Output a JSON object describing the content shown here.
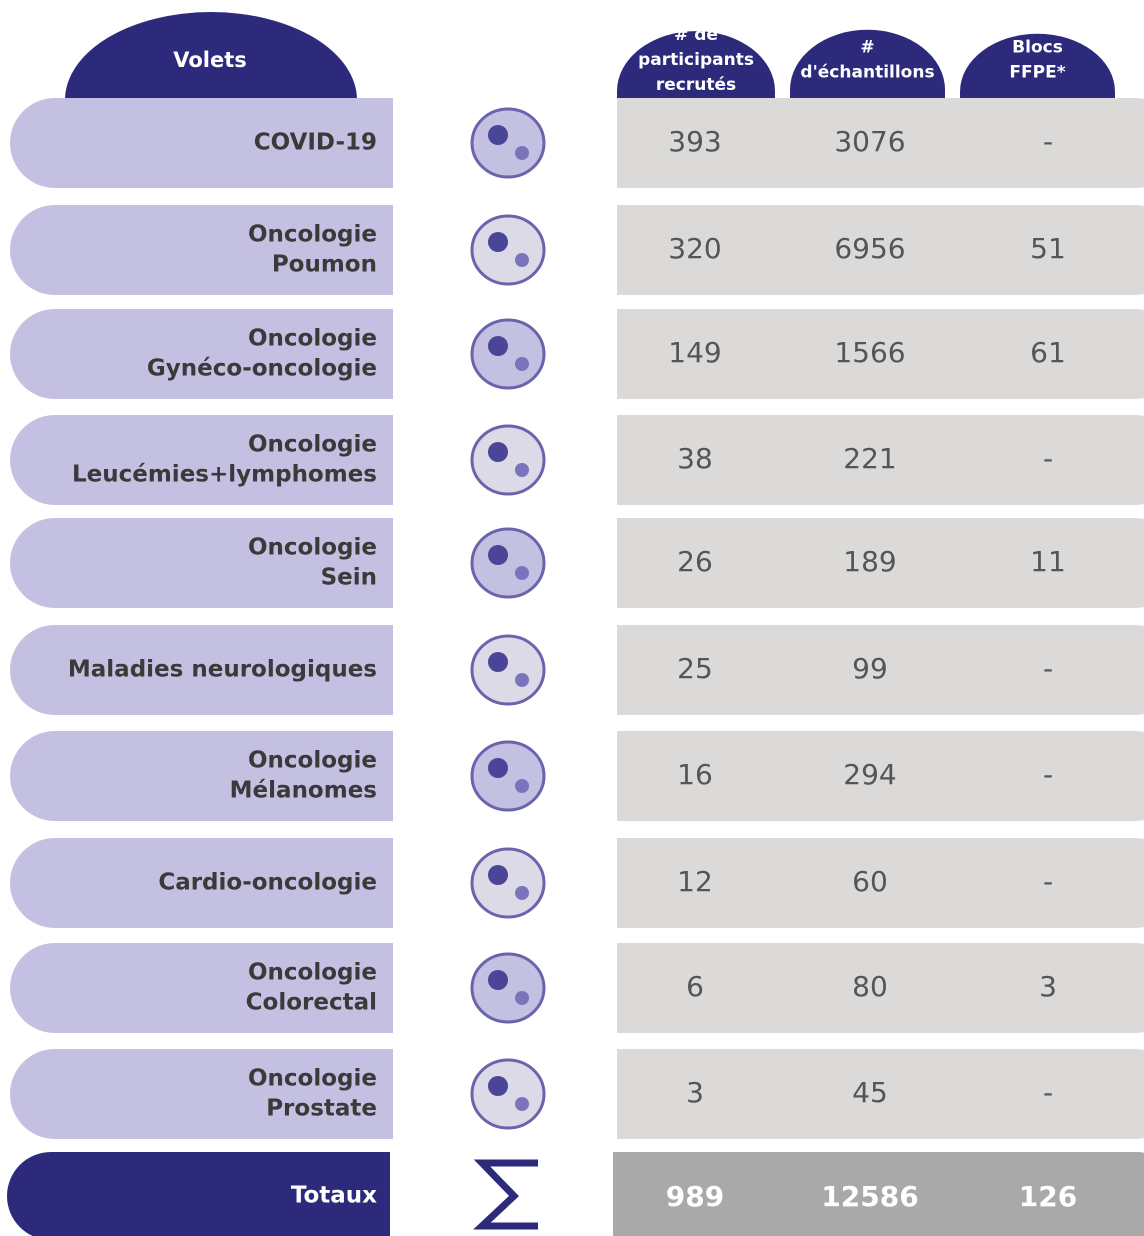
{
  "header": {
    "title": "Volets",
    "columns": [
      [
        "# de",
        "participants",
        "recrutés"
      ],
      [
        "#",
        "d'échantillons"
      ],
      [
        "Blocs",
        "FFPE*"
      ]
    ]
  },
  "rows": [
    {
      "label": [
        "COVID-19"
      ],
      "values": [
        393,
        3076,
        "-"
      ]
    },
    {
      "label": [
        "Oncologie",
        "Poumon"
      ],
      "values": [
        320,
        6956,
        51
      ]
    },
    {
      "label": [
        "Oncologie",
        "Gynéco-oncologie"
      ],
      "values": [
        149,
        1566,
        61
      ]
    },
    {
      "label": [
        "Oncologie",
        "Leucémies+lymphomes"
      ],
      "values": [
        38,
        221,
        "-"
      ]
    },
    {
      "label": [
        "Oncologie",
        "Sein"
      ],
      "values": [
        26,
        189,
        11
      ]
    },
    {
      "label": [
        "Maladies neurologiques"
      ],
      "values": [
        25,
        99,
        "-"
      ]
    },
    {
      "label": [
        "Oncologie",
        "Mélanomes"
      ],
      "values": [
        16,
        294,
        "-"
      ]
    },
    {
      "label": [
        "Cardio-oncologie"
      ],
      "values": [
        12,
        60,
        "-"
      ]
    },
    {
      "label": [
        "Oncologie",
        "Colorectal"
      ],
      "values": [
        6,
        80,
        3
      ]
    },
    {
      "label": [
        "Oncologie",
        "Prostate"
      ],
      "values": [
        3,
        45,
        "-"
      ]
    }
  ],
  "totals": {
    "label": "Totaux",
    "values": [
      989,
      12586,
      126
    ]
  }
}
